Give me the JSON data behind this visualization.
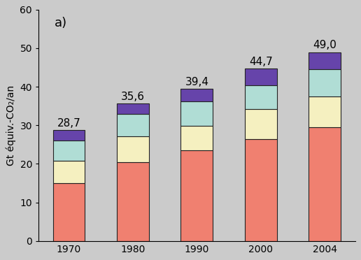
{
  "years": [
    "1970",
    "1980",
    "1990",
    "2000",
    "2004"
  ],
  "totals": [
    28.7,
    35.6,
    39.4,
    44.7,
    49.0
  ],
  "segments": {
    "coral": [
      15.0,
      20.5,
      23.5,
      26.4,
      29.5
    ],
    "cream": [
      5.8,
      6.6,
      6.4,
      7.8,
      8.0
    ],
    "cyan": [
      5.3,
      5.8,
      6.3,
      6.2,
      7.0
    ],
    "purple": [
      2.6,
      2.7,
      3.2,
      4.3,
      4.5
    ]
  },
  "colors": {
    "coral": "#F08070",
    "cream": "#F5F0C0",
    "cyan": "#B0DDD5",
    "purple": "#6644AA"
  },
  "bar_edgecolor": "#222222",
  "bar_linewidth": 0.8,
  "ylabel": "Gt équiv.-CO₂/an",
  "label_a": "a)",
  "ylim": [
    0,
    60
  ],
  "yticks": [
    0,
    10,
    20,
    30,
    40,
    50,
    60
  ],
  "background_color": "#CBCBCB",
  "bar_width": 0.5,
  "total_label_fontsize": 11,
  "ylabel_fontsize": 10,
  "tick_fontsize": 10,
  "label_a_fontsize": 13
}
